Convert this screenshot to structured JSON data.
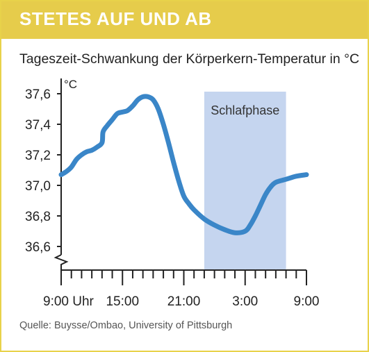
{
  "banner": {
    "title": "STETES AUF UND AB"
  },
  "source": "Quelle: Buysse/Ombao, University of Pittsburgh",
  "colors": {
    "banner": "#e6cc4b",
    "line": "#3a86c8",
    "band": "#c5d5ef"
  },
  "chart_data": {
    "type": "line",
    "title": "Tageszeit-Schwankung der Körperkern-Temperatur in °C",
    "ylabel": "°C",
    "xlabel": "",
    "x_unit": "hours since 9:00",
    "xlim": [
      0,
      24
    ],
    "ylim": [
      36.5,
      37.6
    ],
    "yticks": [
      36.6,
      36.8,
      37.0,
      37.2,
      37.4,
      37.6
    ],
    "ytick_labels": [
      "36,6",
      "36,8",
      "37,0",
      "37,2",
      "37,4",
      "37,6"
    ],
    "xtick_labels": [
      {
        "x": 0,
        "label": "9:00 Uhr"
      },
      {
        "x": 6,
        "label": "15:00"
      },
      {
        "x": 12,
        "label": "21:00"
      },
      {
        "x": 18,
        "label": "3:00"
      },
      {
        "x": 24,
        "label": "9:00"
      }
    ],
    "minor_tick_count": 24,
    "shaded_band": {
      "from": 14,
      "to": 22,
      "label": "Schlafphase"
    },
    "axis_break": true,
    "series": [
      {
        "x": [
          0,
          0.5,
          1,
          1.5,
          2,
          2.5,
          3,
          3.5,
          4,
          4.1,
          4.5,
          5,
          5.5,
          6,
          6.5,
          7,
          7.5,
          8,
          8.5,
          9,
          9.5,
          10,
          10.5,
          11,
          11.5,
          12,
          12.5,
          13,
          14,
          15,
          16,
          17,
          18,
          18.5,
          19,
          19.5,
          20,
          20.5,
          21,
          22,
          23,
          24
        ],
        "y": [
          37.07,
          37.09,
          37.12,
          37.17,
          37.2,
          37.22,
          37.23,
          37.25,
          37.28,
          37.35,
          37.39,
          37.43,
          37.47,
          37.48,
          37.49,
          37.52,
          37.56,
          37.58,
          37.58,
          37.56,
          37.5,
          37.4,
          37.28,
          37.15,
          37.03,
          36.93,
          36.88,
          36.84,
          36.78,
          36.74,
          36.71,
          36.69,
          36.7,
          36.74,
          36.8,
          36.87,
          36.94,
          36.99,
          37.02,
          37.04,
          37.06,
          37.07
        ]
      }
    ]
  }
}
